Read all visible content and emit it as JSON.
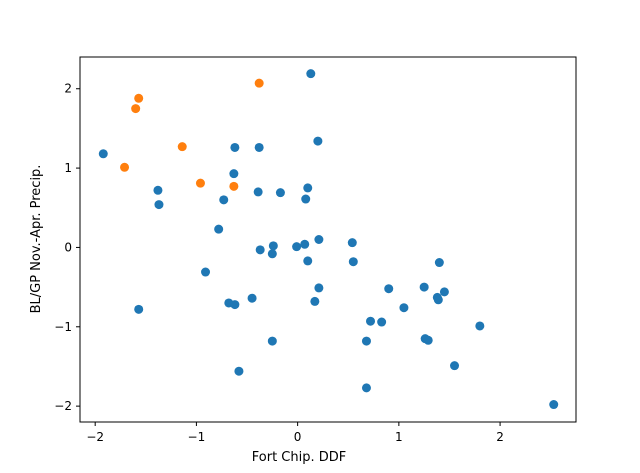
{
  "chart_data": {
    "type": "scatter",
    "title": "",
    "xlabel": "Fort Chip. DDF",
    "ylabel": "BL/GP Nov.-Apr. Precip.",
    "xlim": [
      -2.15,
      2.75
    ],
    "ylim": [
      -2.2,
      2.4
    ],
    "xticks": [
      -2,
      -1,
      0,
      1,
      2
    ],
    "yticks": [
      -2,
      -1,
      0,
      1,
      2
    ],
    "xtick_labels": [
      "−2",
      "−1",
      "0",
      "1",
      "2"
    ],
    "ytick_labels": [
      "−2",
      "−1",
      "0",
      "1",
      "2"
    ],
    "grid": false,
    "legend": null,
    "series": [
      {
        "color": "#1f77b4",
        "points": [
          [
            -1.92,
            1.18
          ],
          [
            -1.38,
            0.72
          ],
          [
            -1.37,
            0.54
          ],
          [
            -1.57,
            -0.78
          ],
          [
            -0.91,
            -0.31
          ],
          [
            -0.78,
            0.23
          ],
          [
            -0.73,
            0.6
          ],
          [
            -0.68,
            -0.7
          ],
          [
            -0.62,
            -0.72
          ],
          [
            -0.58,
            -1.56
          ],
          [
            -0.63,
            0.93
          ],
          [
            -0.62,
            1.26
          ],
          [
            -0.45,
            -0.64
          ],
          [
            -0.38,
            1.26
          ],
          [
            -0.39,
            0.7
          ],
          [
            -0.37,
            -0.03
          ],
          [
            -0.24,
            0.02
          ],
          [
            -0.25,
            -0.08
          ],
          [
            -0.25,
            -1.18
          ],
          [
            -0.17,
            0.69
          ],
          [
            -0.01,
            0.01
          ],
          [
            0.07,
            0.04
          ],
          [
            0.08,
            0.61
          ],
          [
            0.1,
            0.75
          ],
          [
            0.1,
            -0.17
          ],
          [
            0.13,
            2.19
          ],
          [
            0.17,
            -0.68
          ],
          [
            0.2,
            1.34
          ],
          [
            0.21,
            0.1
          ],
          [
            0.21,
            -0.51
          ],
          [
            0.54,
            0.06
          ],
          [
            0.55,
            -0.18
          ],
          [
            0.68,
            -1.18
          ],
          [
            0.68,
            -1.77
          ],
          [
            0.72,
            -0.93
          ],
          [
            0.83,
            -0.94
          ],
          [
            0.9,
            -0.52
          ],
          [
            1.05,
            -0.76
          ],
          [
            1.25,
            -0.5
          ],
          [
            1.26,
            -1.15
          ],
          [
            1.29,
            -1.17
          ],
          [
            1.38,
            -0.63
          ],
          [
            1.39,
            -0.66
          ],
          [
            1.4,
            -0.19
          ],
          [
            1.45,
            -0.56
          ],
          [
            1.55,
            -1.49
          ],
          [
            1.8,
            -0.99
          ],
          [
            2.53,
            -1.98
          ]
        ]
      },
      {
        "color": "#ff7f0e",
        "points": [
          [
            -1.71,
            1.01
          ],
          [
            -1.6,
            1.75
          ],
          [
            -1.57,
            1.88
          ],
          [
            -1.14,
            1.27
          ],
          [
            -0.96,
            0.81
          ],
          [
            -0.63,
            0.77
          ],
          [
            -0.38,
            2.07
          ]
        ]
      }
    ]
  }
}
